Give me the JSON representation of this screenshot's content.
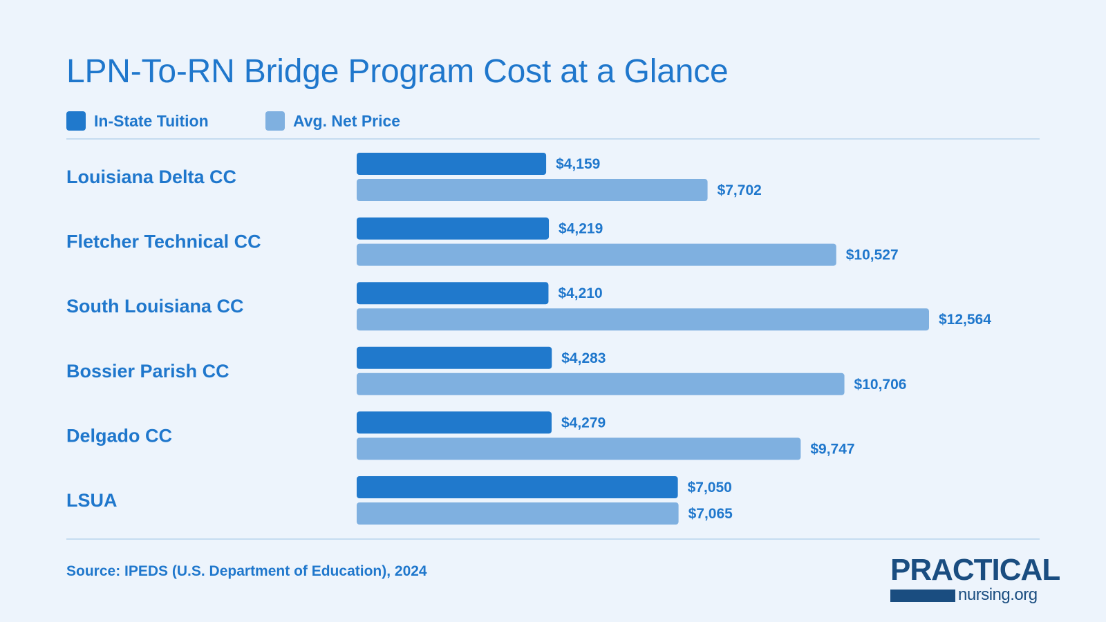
{
  "title": "LPN-To-RN Bridge Program Cost at a Glance",
  "legend": {
    "tuition_label": "In-State Tuition",
    "net_label": "Avg. Net Price"
  },
  "colors": {
    "tuition": "#2079cc",
    "net": "#7fb0e0",
    "text": "#1f77cc",
    "background": "#edf4fc",
    "rule": "#c5dcf0",
    "logo": "#1a4d80"
  },
  "source": "Source: IPEDS (U.S. Department of Education), 2024",
  "logo": {
    "top": "PRACTICAL",
    "bottom": "nursing.org"
  },
  "chart_data": {
    "type": "bar",
    "orientation": "horizontal",
    "categories": [
      "Louisiana Delta CC",
      "Fletcher Technical CC",
      "South Louisiana CC",
      "Bossier Parish CC",
      "Delgado CC",
      "LSUA"
    ],
    "series": [
      {
        "name": "In-State Tuition",
        "values": [
          4159,
          4219,
          4210,
          4283,
          4279,
          7050
        ],
        "labels": [
          "$4,159",
          "$4,219",
          "$4,210",
          "$4,283",
          "$4,279",
          "$7,050"
        ]
      },
      {
        "name": "Avg. Net Price",
        "values": [
          7702,
          10527,
          12564,
          10706,
          9747,
          7065
        ],
        "labels": [
          "$7,702",
          "$10,527",
          "$12,564",
          "$10,706",
          "$9,747",
          "$7,065"
        ]
      }
    ],
    "xlim": [
      0,
      12564
    ],
    "grid": false,
    "legend_position": "top-left"
  }
}
